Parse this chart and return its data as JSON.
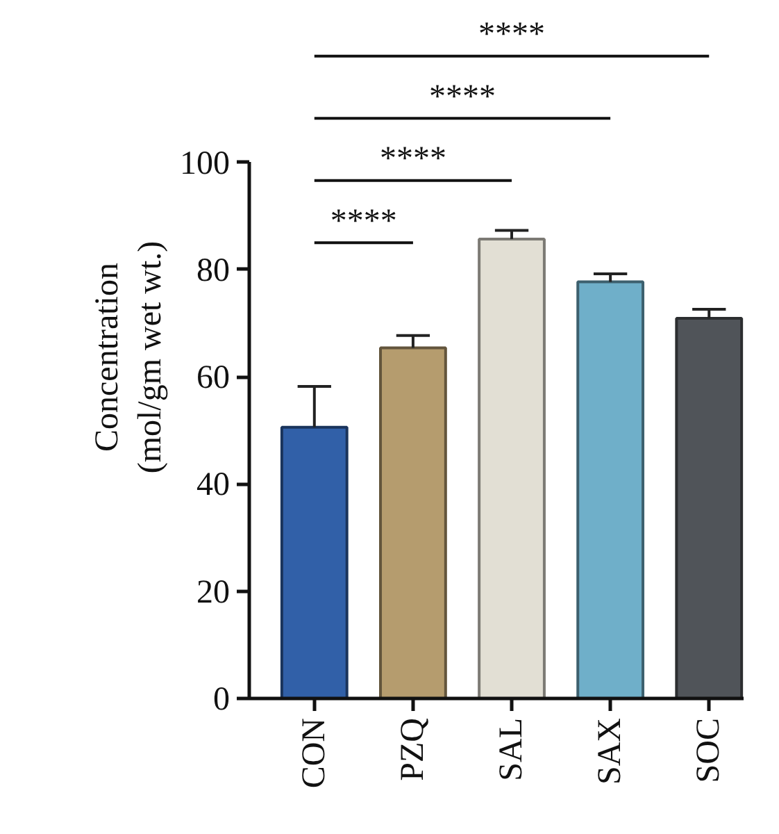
{
  "chart_data": {
    "type": "bar",
    "ylabel": "Concentration\n(mol/gm wet wt.)",
    "categories": [
      "CON",
      "PZQ",
      "SAL",
      "SAX",
      "SOC"
    ],
    "values": [
      50.6,
      65.4,
      85.7,
      77.7,
      70.9
    ],
    "errors": [
      [
        50.6,
        58.2
      ],
      [
        65.4,
        67.7
      ],
      [
        85.7,
        87.3
      ],
      [
        77.7,
        79.2
      ],
      [
        70.9,
        72.6
      ]
    ],
    "colors": [
      "#3160a8",
      "#b59c6e",
      "#e2dfd4",
      "#6fafc9",
      "#505459"
    ],
    "ylim": [
      0,
      100
    ],
    "yticks": [
      0,
      20,
      40,
      60,
      80,
      100
    ],
    "grid": false,
    "annotations": [
      "****",
      "****",
      "****",
      "****"
    ]
  }
}
